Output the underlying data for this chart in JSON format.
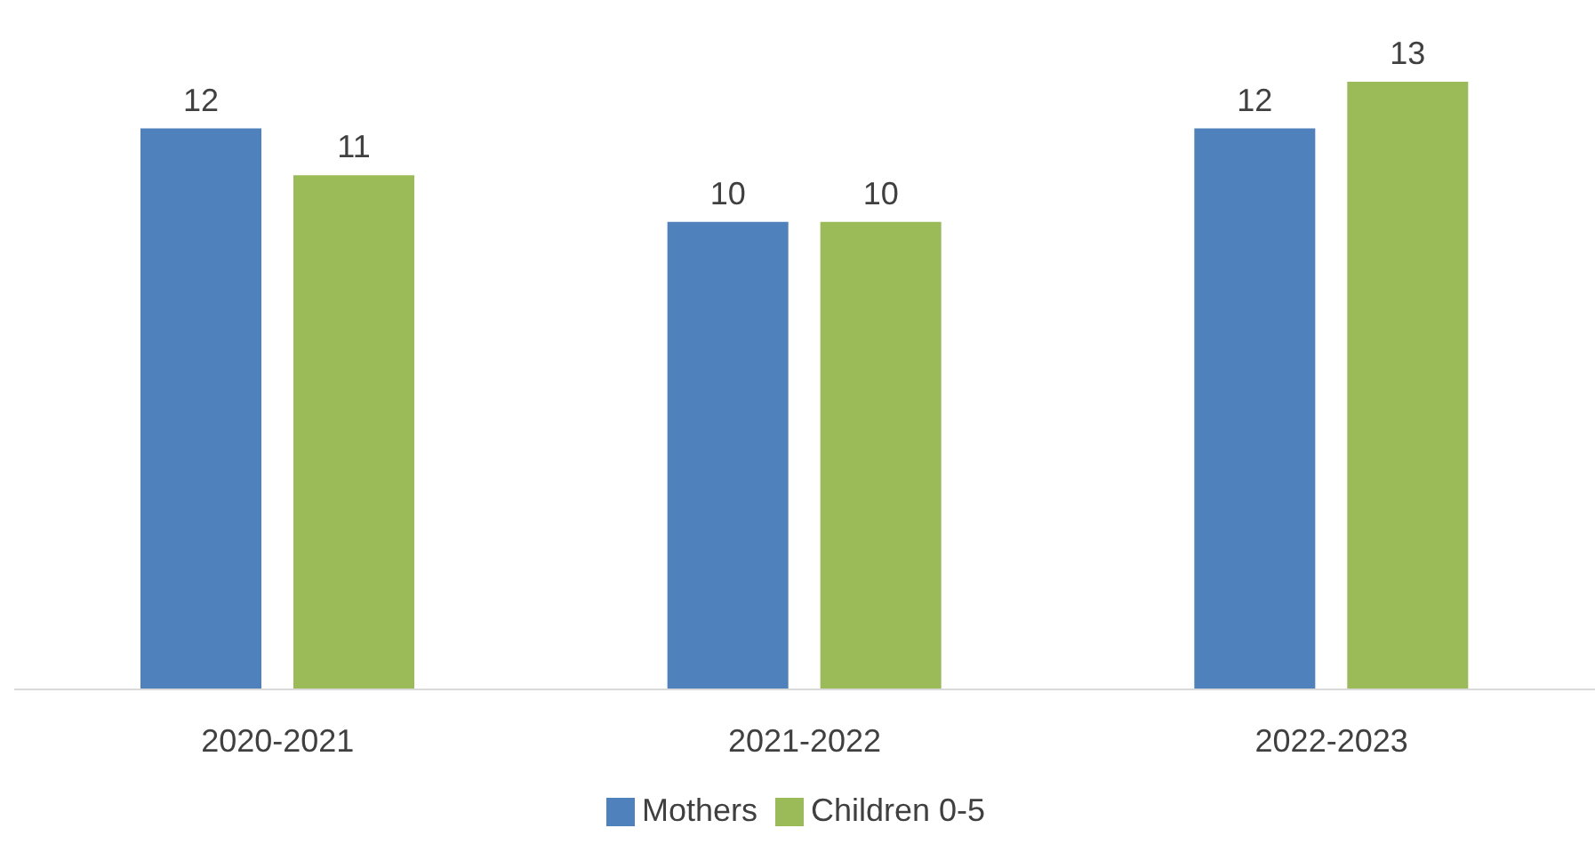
{
  "chart_data": {
    "type": "bar",
    "categories": [
      "2020-2021",
      "2021-2022",
      "2022-2023"
    ],
    "series": [
      {
        "name": "Mothers",
        "color": "#4f81bd",
        "values": [
          12,
          10,
          12
        ]
      },
      {
        "name": "Children 0-5",
        "color": "#9bbb59",
        "values": [
          11,
          10,
          13
        ]
      }
    ],
    "data_labels": true,
    "legend": "bottom"
  }
}
